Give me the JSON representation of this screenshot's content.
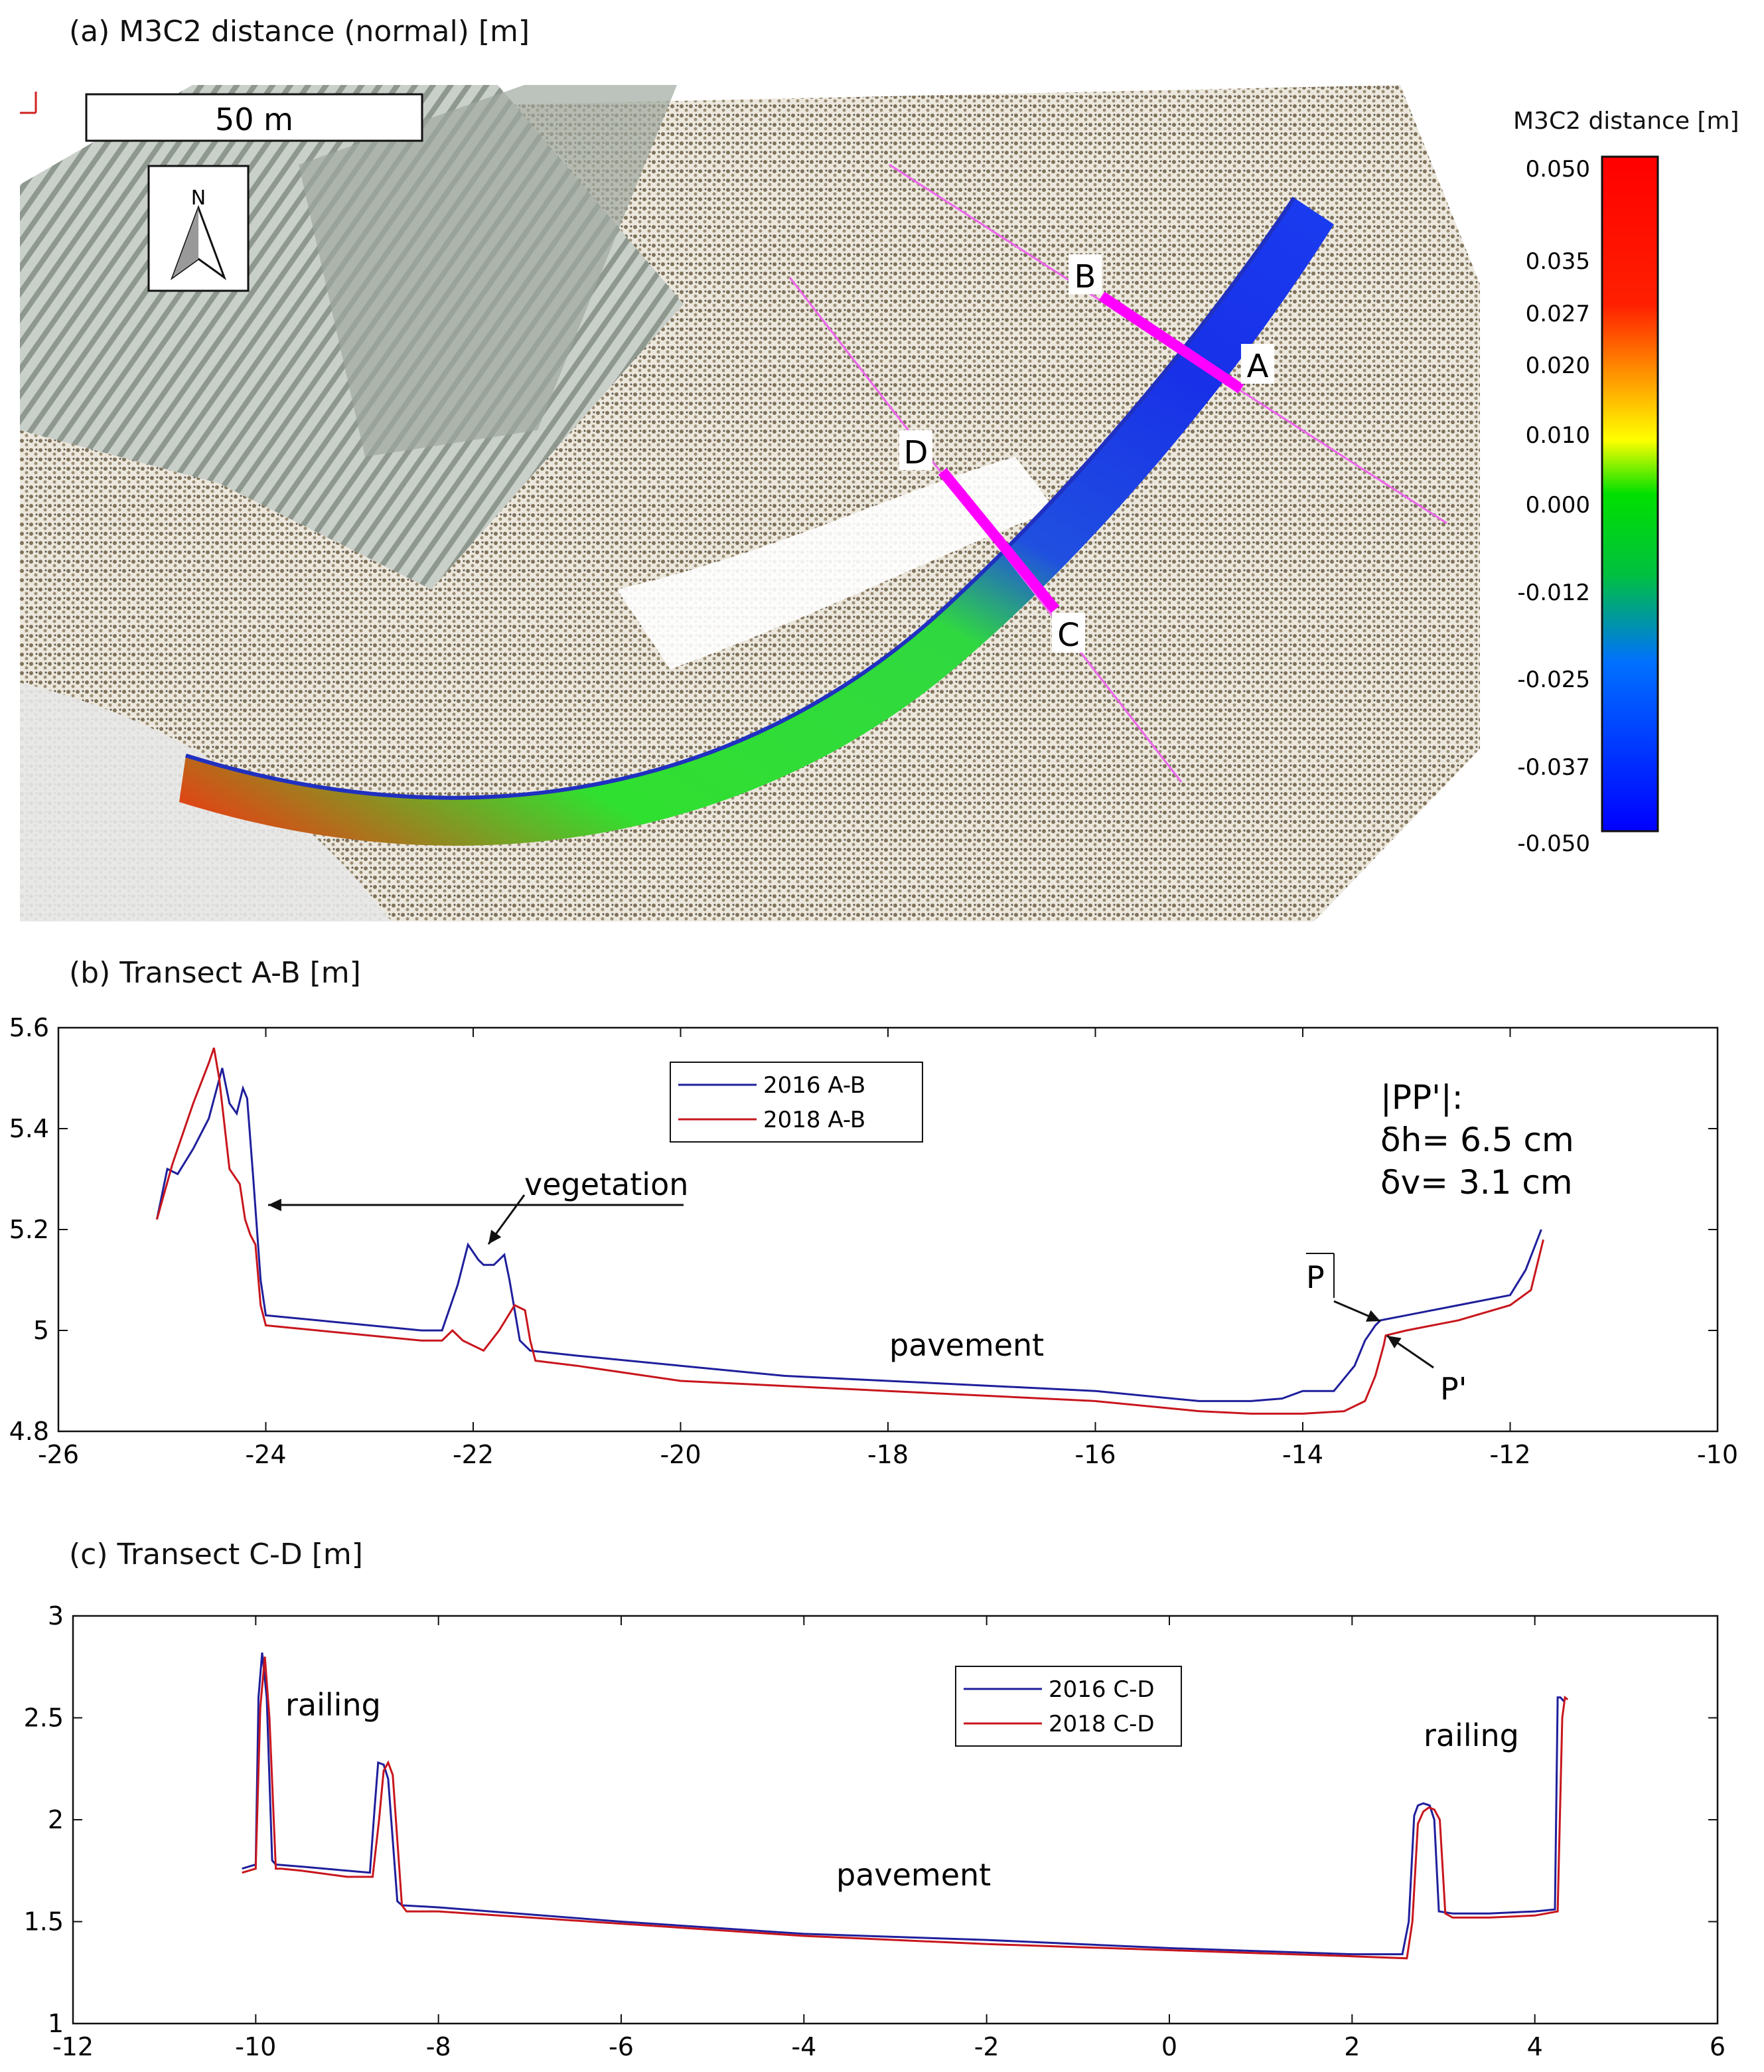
{
  "panel_a": {
    "title": "(a) M3C2 distance (normal) [m]",
    "scale_bar_label": "50 m",
    "north_label": "N",
    "transect_labels": [
      "A",
      "B",
      "C",
      "D"
    ],
    "colorbar": {
      "title": "M3C2 distance [m]",
      "ticks": [
        "0.050",
        "0.035",
        "0.027",
        "0.020",
        "0.010",
        "0.000",
        "-0.012",
        "-0.025",
        "-0.037",
        "-0.050"
      ],
      "colors": [
        "#ff0000",
        "#ff8c00",
        "#ffff00",
        "#00e000",
        "#0080ff",
        "#0000ff"
      ]
    }
  },
  "chart_data": [
    {
      "type": "line",
      "title": "(b) Transect A-B [m]",
      "xlim": [
        -26,
        -10
      ],
      "ylim": [
        4.8,
        5.6
      ],
      "xticks": [
        -26,
        -24,
        -22,
        -20,
        -18,
        -16,
        -14,
        -12,
        -10
      ],
      "yticks": [
        4.8,
        5,
        5.2,
        5.4,
        5.6
      ],
      "xtick_labels": [
        "-26",
        "-24",
        "-22",
        "-20",
        "-18",
        "-16",
        "-14",
        "-12",
        "-10"
      ],
      "ytick_labels": [
        "4.8",
        "5",
        "5.2",
        "5.4",
        "5.6"
      ],
      "legend": "top-center",
      "series": [
        {
          "name": "2016 A-B",
          "color": "#1f1f9c",
          "x": [
            -25.05,
            -24.95,
            -24.85,
            -24.7,
            -24.55,
            -24.42,
            -24.35,
            -24.28,
            -24.22,
            -24.18,
            -24.12,
            -24.05,
            -24.0,
            -23.5,
            -23.0,
            -22.5,
            -22.3,
            -22.15,
            -22.05,
            -21.95,
            -21.9,
            -21.8,
            -21.7,
            -21.65,
            -21.55,
            -21.45,
            -21.0,
            -20.0,
            -19.0,
            -18.0,
            -17.0,
            -16.0,
            -15.0,
            -14.5,
            -14.2,
            -14.0,
            -13.7,
            -13.5,
            -13.4,
            -13.3,
            -13.25,
            -13.0,
            -12.5,
            -12.0,
            -11.85,
            -11.7
          ],
          "y": [
            5.22,
            5.32,
            5.31,
            5.36,
            5.42,
            5.52,
            5.45,
            5.43,
            5.48,
            5.46,
            5.3,
            5.1,
            5.03,
            5.02,
            5.01,
            5.0,
            5.0,
            5.09,
            5.17,
            5.14,
            5.13,
            5.13,
            5.15,
            5.1,
            4.98,
            4.96,
            4.95,
            4.93,
            4.91,
            4.9,
            4.89,
            4.88,
            4.86,
            4.86,
            4.865,
            4.88,
            4.88,
            4.93,
            4.98,
            5.01,
            5.02,
            5.03,
            5.05,
            5.07,
            5.12,
            5.2
          ]
        },
        {
          "name": "2018 A-B",
          "color": "#c8161d",
          "x": [
            -25.05,
            -24.9,
            -24.7,
            -24.55,
            -24.5,
            -24.45,
            -24.35,
            -24.25,
            -24.2,
            -24.15,
            -24.1,
            -24.05,
            -24.0,
            -23.5,
            -23.0,
            -22.5,
            -22.3,
            -22.2,
            -22.1,
            -21.9,
            -21.75,
            -21.6,
            -21.5,
            -21.45,
            -21.4,
            -21.0,
            -20.0,
            -19.0,
            -18.0,
            -17.0,
            -16.0,
            -15.0,
            -14.5,
            -14.0,
            -13.6,
            -13.4,
            -13.3,
            -13.22,
            -13.2,
            -13.0,
            -12.5,
            -12.0,
            -11.8,
            -11.68
          ],
          "y": [
            5.22,
            5.33,
            5.45,
            5.53,
            5.56,
            5.5,
            5.32,
            5.29,
            5.22,
            5.19,
            5.17,
            5.05,
            5.01,
            5.0,
            4.99,
            4.98,
            4.98,
            5.0,
            4.98,
            4.96,
            5.0,
            5.05,
            5.04,
            4.98,
            4.94,
            4.93,
            4.9,
            4.89,
            4.88,
            4.87,
            4.86,
            4.84,
            4.835,
            4.835,
            4.84,
            4.86,
            4.91,
            4.97,
            4.99,
            5.0,
            5.02,
            5.05,
            5.08,
            5.18
          ]
        }
      ],
      "annotations": [
        {
          "text": "vegetation"
        },
        {
          "text": "pavement"
        },
        {
          "text": "P"
        },
        {
          "text": "P'"
        },
        {
          "text": "|PP'|:"
        },
        {
          "text": "δh= 6.5 cm"
        },
        {
          "text": "δv= 3.1 cm"
        }
      ]
    },
    {
      "type": "line",
      "title": "(c) Transect C-D [m]",
      "xlim": [
        -12,
        6
      ],
      "ylim": [
        1,
        3
      ],
      "xticks": [
        -12,
        -10,
        -8,
        -6,
        -4,
        -2,
        0,
        2,
        4,
        6
      ],
      "yticks": [
        1,
        1.5,
        2,
        2.5,
        3
      ],
      "xtick_labels": [
        "-12",
        "-10",
        "-8",
        "-6",
        "-4",
        "-2",
        "0",
        "2",
        "4",
        "6"
      ],
      "ytick_labels": [
        "1",
        "1.5",
        "2",
        "2.5",
        "3"
      ],
      "legend": "top-center",
      "series": [
        {
          "name": "2016 C-D",
          "color": "#1f1f9c",
          "x": [
            -10.15,
            -10.0,
            -9.97,
            -9.93,
            -9.88,
            -9.82,
            -9.78,
            -9.5,
            -9.0,
            -8.75,
            -8.7,
            -8.66,
            -8.6,
            -8.55,
            -8.5,
            -8.45,
            -8.4,
            -8.0,
            -6.0,
            -4.0,
            -2.0,
            0.0,
            2.0,
            2.55,
            2.62,
            2.68,
            2.72,
            2.78,
            2.85,
            2.9,
            2.95,
            3.1,
            3.5,
            4.0,
            4.22,
            4.25,
            4.28,
            4.32
          ],
          "y": [
            1.76,
            1.78,
            2.6,
            2.82,
            2.6,
            1.8,
            1.78,
            1.77,
            1.75,
            1.74,
            2.05,
            2.28,
            2.27,
            2.2,
            1.9,
            1.6,
            1.58,
            1.57,
            1.5,
            1.44,
            1.41,
            1.37,
            1.34,
            1.34,
            1.5,
            2.02,
            2.07,
            2.08,
            2.07,
            2.0,
            1.55,
            1.54,
            1.54,
            1.55,
            1.56,
            2.6,
            2.6,
            2.58
          ]
        },
        {
          "name": "2018 C-D",
          "color": "#c8161d",
          "x": [
            -10.15,
            -10.0,
            -9.95,
            -9.9,
            -9.85,
            -9.78,
            -9.72,
            -9.5,
            -9.0,
            -8.72,
            -8.65,
            -8.6,
            -8.55,
            -8.5,
            -8.45,
            -8.4,
            -8.35,
            -8.0,
            -6.0,
            -4.0,
            -2.0,
            0.0,
            2.0,
            2.6,
            2.66,
            2.72,
            2.78,
            2.84,
            2.9,
            2.96,
            3.02,
            3.1,
            3.5,
            4.0,
            4.25,
            4.3,
            4.33,
            4.36
          ],
          "y": [
            1.74,
            1.76,
            2.55,
            2.8,
            2.5,
            1.76,
            1.76,
            1.75,
            1.72,
            1.72,
            2.0,
            2.24,
            2.28,
            2.22,
            1.9,
            1.58,
            1.55,
            1.55,
            1.49,
            1.43,
            1.39,
            1.36,
            1.33,
            1.32,
            1.5,
            1.98,
            2.04,
            2.06,
            2.05,
            2.0,
            1.54,
            1.52,
            1.52,
            1.53,
            1.55,
            2.5,
            2.6,
            2.59
          ]
        }
      ],
      "annotations": [
        {
          "text": "railing"
        },
        {
          "text": "railing"
        },
        {
          "text": "pavement"
        }
      ]
    }
  ]
}
